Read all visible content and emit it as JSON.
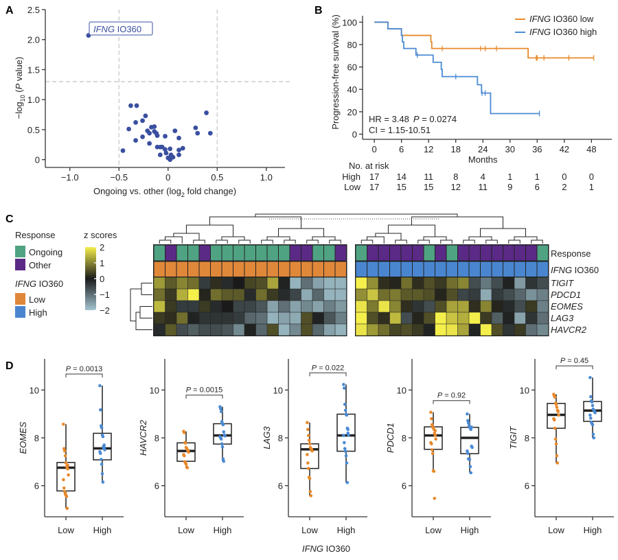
{
  "panel_labels": {
    "a": "A",
    "b": "B",
    "c": "C",
    "d": "D"
  },
  "chart_data": [
    {
      "type": "scatter",
      "xlabel": {
        "text": "Ongoing vs. other (log",
        "sub": "2",
        "tail": " fold change)"
      },
      "ylabel": {
        "text": "−log",
        "sub": "10",
        "open": " (",
        "italic": "P",
        "tail": " value)"
      },
      "xlim": [
        -1.25,
        1.19
      ],
      "ylim": [
        -0.13,
        2.5
      ],
      "x_ticks": [
        -1.0,
        -0.5,
        0,
        0.5,
        1.0
      ],
      "x_tick_labels": [
        "−1.0",
        "−0.5",
        "0",
        "0.5",
        "1.0"
      ],
      "y_ticks": [
        0,
        0.5,
        1.0,
        1.5,
        2.0,
        2.5
      ],
      "y_tick_labels": [
        "0",
        "0.5",
        "1.0",
        "1.5",
        "2.0",
        "2.5"
      ],
      "thresholds": {
        "x": [
          -0.5,
          0.5
        ],
        "y": 1.3
      },
      "color": "#3a4fa0",
      "highlight": {
        "gene": "IFNG",
        "suffix": " IO360",
        "x": -0.81,
        "y": 2.07
      },
      "points": [
        [
          -0.38,
          0.9
        ],
        [
          -0.32,
          0.9
        ],
        [
          -0.4,
          0.51
        ],
        [
          -0.33,
          0.62
        ],
        [
          -0.26,
          0.65
        ],
        [
          -0.23,
          0.73
        ],
        [
          -0.26,
          0.38
        ],
        [
          -0.33,
          0.32
        ],
        [
          -0.46,
          0.15
        ],
        [
          -0.21,
          0.48
        ],
        [
          -0.19,
          0.44
        ],
        [
          -0.17,
          0.54
        ],
        [
          -0.14,
          0.55
        ],
        [
          -0.14,
          0.47
        ],
        [
          -0.12,
          0.44
        ],
        [
          -0.11,
          0.4
        ],
        [
          -0.19,
          0.27
        ],
        [
          -0.11,
          0.21
        ],
        [
          -0.08,
          0.21
        ],
        [
          -0.06,
          0.21
        ],
        [
          -0.03,
          0.17
        ],
        [
          -0.08,
          0.08
        ],
        [
          -0.03,
          0.39
        ],
        [
          -0.02,
          0.11
        ],
        [
          0.0,
          0.03
        ],
        [
          0.02,
          0.02
        ],
        [
          0.02,
          0.18
        ],
        [
          0.03,
          0.08
        ],
        [
          0.05,
          0.04
        ],
        [
          0.02,
          0.0
        ],
        [
          0.07,
          0.48
        ],
        [
          0.11,
          0.36
        ],
        [
          0.11,
          0.16
        ],
        [
          0.11,
          0.08
        ],
        [
          0.15,
          0.19
        ],
        [
          0.28,
          0.53
        ],
        [
          0.3,
          0.44
        ],
        [
          0.39,
          0.78
        ],
        [
          0.43,
          0.44
        ]
      ]
    },
    {
      "type": "line",
      "ylabel": "Progression-free survival (%)",
      "xlabel": "Months",
      "xlim": [
        -2.6,
        52.5
      ],
      "ylim": [
        -4.6,
        105.7
      ],
      "x_ticks": [
        0,
        6,
        12,
        18,
        24,
        30,
        36,
        42,
        48
      ],
      "y_ticks": [
        0,
        20,
        40,
        60,
        80,
        100
      ],
      "legend_position": "top-right",
      "series": [
        {
          "gene": "IFNG",
          "name": " IO360 low",
          "color": "#e8892b",
          "steps": [
            [
              0,
              100
            ],
            [
              3,
              94.1
            ],
            [
              6,
              88.2
            ],
            [
              12.5,
              82.4
            ],
            [
              12.7,
              76.5
            ],
            [
              34,
              68.1
            ],
            [
              48.5,
              68.1
            ]
          ],
          "censored": [
            15,
            23.5,
            24.5,
            27,
            35.8,
            36,
            37.5,
            43,
            48.5
          ]
        },
        {
          "gene": "IFNG",
          "name": " IO360 high",
          "color": "#4a8ad4",
          "steps": [
            [
              0,
              100
            ],
            [
              3,
              94.1
            ],
            [
              6,
              88.2
            ],
            [
              6.2,
              82.4
            ],
            [
              6.5,
              76.5
            ],
            [
              9.2,
              70.6
            ],
            [
              13,
              64.2
            ],
            [
              14.8,
              57.8
            ],
            [
              15,
              51.4
            ],
            [
              22.8,
              44.1
            ],
            [
              23.7,
              36.7
            ],
            [
              25.7,
              18.4
            ],
            [
              36.5,
              18.4
            ]
          ],
          "censored": [
            9.5,
            18,
            23.8,
            24.5,
            36.5
          ]
        }
      ],
      "annotation": {
        "hr": "HR = 3.48",
        "p_italic": "P",
        "p_value": " = 0.0274",
        "ci": "CI = 1.15-10.51"
      },
      "risk_table": {
        "title": "No. at risk",
        "rows": [
          {
            "label": "High",
            "color": "#4a8ad4",
            "values": [
              "17",
              "14",
              "11",
              "8",
              "4",
              "1",
              "1",
              "0",
              "0"
            ]
          },
          {
            "label": "Low",
            "color": "#e8892b",
            "values": [
              "17",
              "15",
              "15",
              "12",
              "11",
              "9",
              "6",
              "2",
              "1"
            ]
          }
        ]
      }
    },
    {
      "type": "heatmap",
      "rows": [
        "TIGIT",
        "PDCD1",
        "EOMES",
        "LAG3",
        "HAVCR2"
      ],
      "annotation_rows": [
        {
          "label": "Response"
        },
        {
          "gene": "IFNG",
          "suffix": " IO360"
        }
      ],
      "colorbar": {
        "title": "z scores",
        "ticks": [
          2,
          1,
          0,
          -1,
          -2
        ],
        "tick_labels": [
          "2",
          "1",
          "0",
          "−1",
          "−2"
        ],
        "low": "#a3c4cf",
        "mid": "#1a1a1a",
        "high": "#f5ef4c"
      },
      "legend": {
        "response_title": "Response",
        "response": [
          {
            "label": "Ongoing",
            "color": "#4fa383"
          },
          {
            "label": "Other",
            "color": "#5b2a86"
          }
        ],
        "ifng_title_gene": "IFNG",
        "ifng_title_suffix": " IO360",
        "ifng": [
          {
            "label": "Low",
            "color": "#e0883a"
          },
          {
            "label": "High",
            "color": "#4a86cf"
          }
        ]
      },
      "clusters": [
        {
          "ifng": "Low",
          "response": [
            "Ongoing",
            "Other",
            "Ongoing",
            "Ongoing",
            "Other",
            "Ongoing",
            "Ongoing",
            "Ongoing",
            "Ongoing",
            "Ongoing",
            "Ongoing",
            "Ongoing",
            "Other",
            "Other",
            "Ongoing",
            "Ongoing",
            "Other"
          ],
          "values": [
            [
              1.2,
              0.6,
              1.0,
              0.8,
              -0.4,
              0.2,
              -0.2,
              0,
              0.4,
              0.5,
              1.3,
              -0.1,
              -1.8,
              -1.0,
              -1.6,
              -1.8,
              -1.8
            ],
            [
              0.8,
              0.3,
              1.4,
              2.0,
              0.1,
              0.8,
              0.6,
              0.6,
              -0.2,
              0.8,
              0.3,
              -0.2,
              -0.5,
              -1.7,
              -0.9,
              -1.8,
              -1.8
            ],
            [
              1.5,
              0.3,
              -0.4,
              -0.4,
              0.3,
              -0.2,
              0,
              -0.5,
              -0.5,
              -0.7,
              -1.6,
              -1.0,
              -1.6,
              -1.3,
              -1.6,
              -1.2,
              -1.5
            ],
            [
              0.3,
              0.2,
              0.8,
              -0.1,
              -0.3,
              -0.3,
              -0.3,
              -0.4,
              -0.9,
              -1.0,
              -1.8,
              -1.6,
              -1.7,
              0.5,
              -0.1,
              -0.7,
              -1.2
            ],
            [
              -0.2,
              0.6,
              -0.6,
              -0.8,
              -0.6,
              -0.6,
              -0.7,
              -1.3,
              -0.1,
              -0.9,
              0.5,
              -1.8,
              -1.3,
              0.5,
              -0.9,
              -1.6,
              -1.8
            ]
          ]
        },
        {
          "ifng": "High",
          "response": [
            "Ongoing",
            "Other",
            "Other",
            "Other",
            "Other",
            "Other",
            "Ongoing",
            "Other",
            "Ongoing",
            "Other",
            "Other",
            "Other",
            "Other",
            "Other",
            "Other",
            "Other",
            "Ongoing"
          ],
          "values": [
            [
              2.0,
              1.1,
              0.2,
              0.1,
              0.8,
              0.2,
              0.5,
              0.3,
              0.8,
              1.0,
              -0.6,
              -1.1,
              -0.6,
              -0.1,
              -1.5,
              -0.3,
              -0.6
            ],
            [
              1.1,
              1.6,
              0.8,
              0.9,
              0.6,
              0.6,
              0.5,
              0.1,
              0.5,
              -0.5,
              -0.4,
              -1.7,
              -0.4,
              -0.6,
              -0.9,
              -1.4,
              -1.2
            ],
            [
              1.9,
              0.9,
              1.9,
              1.0,
              0.2,
              -0.3,
              -0.6,
              0.5,
              1.3,
              1.3,
              0.2,
              1.0,
              0.1,
              -0.2,
              -0.6,
              0.3,
              -1.2
            ],
            [
              2.0,
              0.5,
              0.2,
              1.5,
              -0.6,
              0.1,
              0.5,
              2.0,
              1.6,
              1.4,
              2.0,
              0.3,
              -0.8,
              -0.1,
              -1.6,
              -0.3,
              -1.0
            ],
            [
              1.9,
              1.2,
              0.8,
              0.4,
              0.5,
              0.3,
              -0.1,
              2.0,
              1.9,
              1.3,
              -0.1,
              2.0,
              0.5,
              -0.3,
              0.3,
              -1.0,
              -1.3
            ]
          ]
        }
      ]
    },
    {
      "type": "box",
      "xlabel": {
        "gene": "IFNG",
        "suffix": " IO360"
      },
      "categories": [
        "Low",
        "High"
      ],
      "colors": {
        "Low": "#e8892b",
        "High": "#4a8ad4"
      },
      "ylim": [
        4.7,
        11.3
      ],
      "y_ticks": [
        6,
        8,
        10
      ],
      "panels": [
        {
          "gene": "EOMES",
          "p_label": "P",
          "p_value": " = 0.0013",
          "boxes": [
            {
              "q1": 5.78,
              "median": 6.75,
              "q3": 6.97,
              "whisker_low": 5.05,
              "whisker_high": 8.57
            },
            {
              "q1": 7.08,
              "median": 7.56,
              "q3": 8.19,
              "whisker_low": 6.15,
              "whisker_high": 10.18
            }
          ],
          "points": [
            [
              8.57,
              7.55,
              7.45,
              7.25,
              6.95,
              6.8,
              6.75,
              6.7,
              6.45,
              6.25,
              5.9,
              5.75,
              5.65,
              5.6,
              5.55,
              5.05,
              6.85
            ],
            [
              10.18,
              9.17,
              8.5,
              8.42,
              8.12,
              8.05,
              7.65,
              7.6,
              7.5,
              7.42,
              7.35,
              7.1,
              6.9,
              6.5,
              6.15,
              7.55,
              7.7
            ]
          ]
        },
        {
          "gene": "HAVCR2",
          "p_label": "P",
          "p_value": " = 0.0015",
          "boxes": [
            {
              "q1": 7.02,
              "median": 7.45,
              "q3": 7.79,
              "whisker_low": 6.75,
              "whisker_high": 8.27
            },
            {
              "q1": 7.74,
              "median": 8.1,
              "q3": 8.59,
              "whisker_low": 7.02,
              "whisker_high": 9.3
            }
          ],
          "points": [
            [
              8.27,
              8.22,
              7.8,
              7.78,
              7.6,
              7.55,
              7.5,
              7.45,
              7.4,
              7.3,
              7.25,
              7.0,
              6.95,
              6.9,
              6.78,
              6.75,
              7.48
            ],
            [
              9.3,
              9.22,
              9.1,
              8.68,
              8.6,
              8.55,
              8.25,
              8.12,
              8.08,
              8.05,
              8.0,
              7.95,
              7.75,
              7.62,
              7.12,
              7.02,
              8.1
            ]
          ]
        },
        {
          "gene": "LAG3",
          "p_label": "P",
          "p_value": " = 0.022",
          "boxes": [
            {
              "q1": 6.72,
              "median": 7.52,
              "q3": 7.75,
              "whisker_low": 5.58,
              "whisker_high": 8.64
            },
            {
              "q1": 7.44,
              "median": 8.1,
              "q3": 8.99,
              "whisker_low": 6.13,
              "whisker_high": 10.23
            }
          ],
          "points": [
            [
              8.64,
              8.35,
              8.1,
              7.9,
              7.75,
              7.6,
              7.55,
              7.5,
              7.45,
              7.3,
              6.95,
              6.72,
              6.35,
              6.3,
              5.75,
              5.58,
              7.52
            ],
            [
              10.23,
              10.08,
              9.4,
              9.15,
              8.98,
              8.95,
              8.4,
              8.35,
              8.12,
              8.1,
              7.8,
              7.55,
              7.44,
              7.25,
              6.95,
              6.13,
              8.2
            ]
          ]
        },
        {
          "gene": "PDCD1",
          "p_label": "P",
          "p_value": " = 0.92",
          "boxes": [
            {
              "q1": 7.52,
              "median": 8.1,
              "q3": 8.46,
              "whisker_low": 6.62,
              "whisker_high": 9.07
            },
            {
              "q1": 7.34,
              "median": 8.0,
              "q3": 8.44,
              "whisker_low": 6.54,
              "whisker_high": 9.0
            }
          ],
          "points": [
            [
              9.07,
              8.8,
              8.55,
              8.45,
              8.42,
              8.35,
              8.2,
              8.1,
              7.95,
              7.8,
              7.75,
              7.5,
              7.35,
              6.62,
              6.6,
              5.47,
              8.3
            ],
            [
              9.0,
              8.72,
              8.62,
              8.5,
              8.45,
              8.4,
              8.35,
              7.65,
              7.6,
              7.45,
              7.35,
              7.12,
              7.1,
              7.1,
              6.8,
              6.54,
              8.45
            ]
          ]
        },
        {
          "gene": "TIGIT",
          "p_label": "P",
          "p_value": " = 0.45",
          "boxes": [
            {
              "q1": 8.4,
              "median": 8.96,
              "q3": 9.44,
              "whisker_low": 6.95,
              "whisker_high": 9.82
            },
            {
              "q1": 8.69,
              "median": 9.14,
              "q3": 9.52,
              "whisker_low": 8.0,
              "whisker_high": 10.52
            }
          ],
          "points": [
            [
              9.82,
              9.75,
              9.7,
              9.45,
              9.4,
              9.28,
              9.15,
              9.12,
              8.95,
              8.8,
              8.75,
              8.4,
              7.95,
              7.75,
              7.25,
              6.95,
              9.1
            ],
            [
              10.52,
              9.72,
              9.55,
              9.5,
              9.35,
              9.2,
              9.15,
              9.12,
              9.05,
              8.95,
              8.82,
              8.65,
              8.6,
              8.55,
              8.15,
              8.0,
              9.1
            ]
          ]
        }
      ]
    }
  ]
}
